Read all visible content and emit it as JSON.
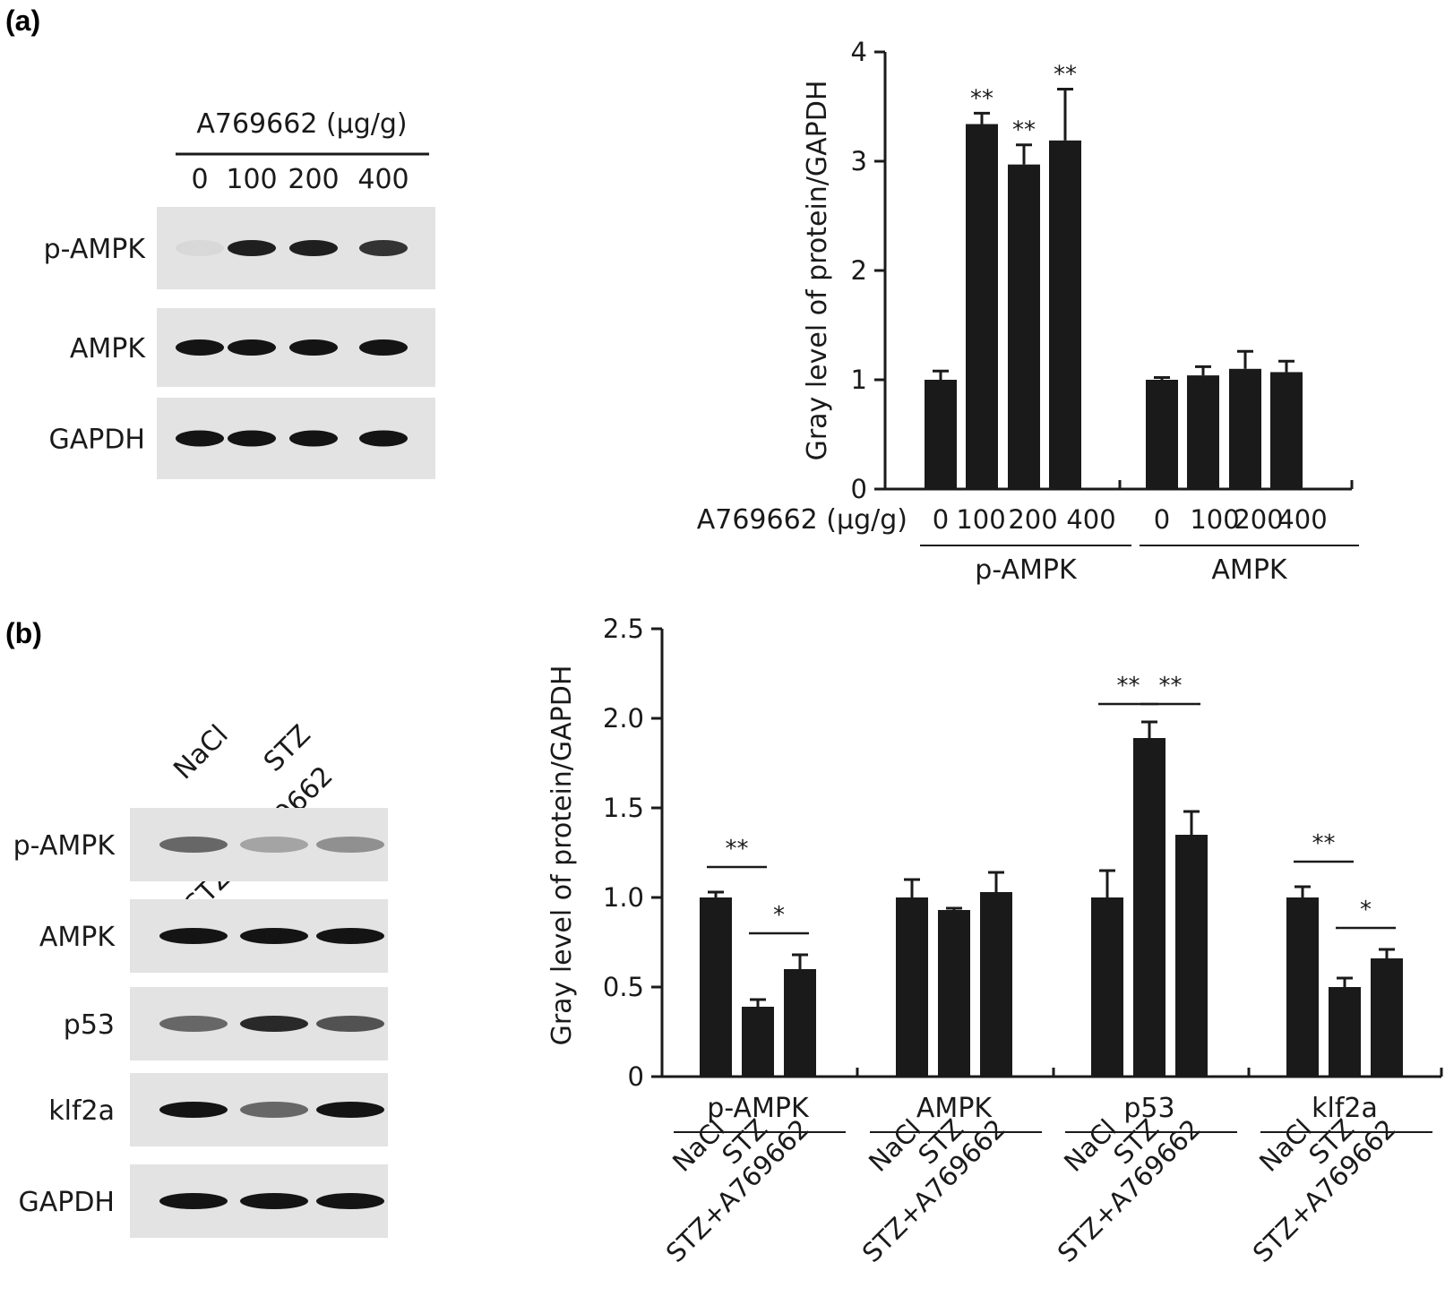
{
  "panel_a": {
    "label": "(a)",
    "blot": {
      "treatment_label": "A769662 (μg/g)",
      "doses": [
        "0",
        "100",
        "200",
        "400"
      ],
      "rows": [
        {
          "name": "p-AMPK",
          "intensity": [
            0.05,
            0.95,
            0.95,
            0.85
          ]
        },
        {
          "name": "AMPK",
          "intensity": [
            1,
            1,
            1,
            1
          ]
        },
        {
          "name": "GAPDH",
          "intensity": [
            1,
            1,
            1,
            1
          ]
        }
      ]
    }
  },
  "panel_b": {
    "label": "(b)",
    "blot": {
      "lanes": [
        "NaCl",
        "STZ",
        "STZ+A769662"
      ],
      "rows": [
        {
          "name": "p-AMPK",
          "intensity": [
            0.6,
            0.3,
            0.4
          ]
        },
        {
          "name": "AMPK",
          "intensity": [
            1,
            1,
            1
          ]
        },
        {
          "name": "p53",
          "intensity": [
            0.6,
            0.9,
            0.7
          ]
        },
        {
          "name": "klf2a",
          "intensity": [
            1,
            0.6,
            1
          ]
        },
        {
          "name": "GAPDH",
          "intensity": [
            1,
            1,
            1
          ]
        }
      ]
    }
  },
  "chart_data": [
    {
      "type": "bar",
      "panel": "a",
      "title": "",
      "ylabel": "Gray level of protein/GAPDH",
      "xlabel": "A769662 (μg/g)",
      "ylim": [
        0,
        4
      ],
      "yticks": [
        "0",
        "1",
        "2",
        "3",
        "4"
      ],
      "groups": [
        {
          "name": "p-AMPK",
          "categories": [
            "0",
            "100",
            "200",
            "400"
          ],
          "values": [
            1.0,
            3.34,
            2.97,
            3.19
          ],
          "errors": [
            0.08,
            0.1,
            0.18,
            0.47
          ],
          "annotations": [
            "",
            "**",
            "**",
            "**"
          ]
        },
        {
          "name": "AMPK",
          "categories": [
            "0",
            "100",
            "200",
            "400"
          ],
          "values": [
            1.0,
            1.04,
            1.1,
            1.07
          ],
          "errors": [
            0.02,
            0.08,
            0.16,
            0.1
          ],
          "annotations": [
            "",
            "",
            "",
            ""
          ]
        }
      ],
      "grid": false
    },
    {
      "type": "bar",
      "panel": "b",
      "title": "",
      "ylabel": "Gray level of protein/GAPDH",
      "ylim": [
        0,
        2.5
      ],
      "yticks": [
        "0",
        "0.5",
        "1.0",
        "1.5",
        "2.0",
        "2.5"
      ],
      "groups": [
        {
          "name": "p-AMPK",
          "categories": [
            "NaCl",
            "STZ",
            "STZ+A769662"
          ],
          "values": [
            1.0,
            0.39,
            0.6
          ],
          "errors": [
            0.03,
            0.04,
            0.08
          ],
          "brackets": [
            {
              "from": 0,
              "to": 1,
              "label": "**"
            },
            {
              "from": 1,
              "to": 2,
              "label": "*"
            }
          ]
        },
        {
          "name": "AMPK",
          "categories": [
            "NaCl",
            "STZ",
            "STZ+A769662"
          ],
          "values": [
            1.0,
            0.93,
            1.03
          ],
          "errors": [
            0.1,
            0.01,
            0.11
          ],
          "brackets": []
        },
        {
          "name": "p53",
          "categories": [
            "NaCl",
            "STZ",
            "STZ+A769662"
          ],
          "values": [
            1.0,
            1.89,
            1.35
          ],
          "errors": [
            0.15,
            0.09,
            0.13
          ],
          "brackets": [
            {
              "from": 0,
              "to": 1,
              "label": "**"
            },
            {
              "from": 1,
              "to": 2,
              "label": "**"
            }
          ]
        },
        {
          "name": "klf2a",
          "categories": [
            "NaCl",
            "STZ",
            "STZ+A769662"
          ],
          "values": [
            1.0,
            0.5,
            0.66
          ],
          "errors": [
            0.06,
            0.05,
            0.05
          ],
          "brackets": [
            {
              "from": 0,
              "to": 1,
              "label": "**"
            },
            {
              "from": 1,
              "to": 2,
              "label": "*"
            }
          ]
        }
      ],
      "grid": false
    }
  ]
}
